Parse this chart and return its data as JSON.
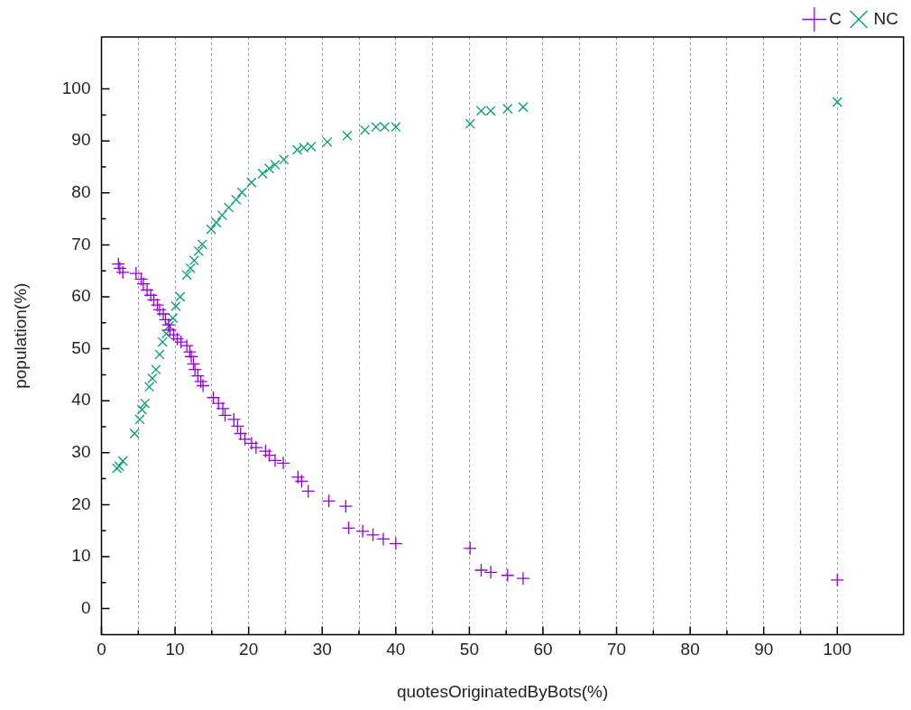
{
  "chart_data": {
    "type": "scatter",
    "xlabel": "quotesOriginatedByBots(%)",
    "ylabel": "population(%)",
    "legend": "top right",
    "grid": "x",
    "xlim": [
      0,
      109
    ],
    "ylim": [
      -5,
      110
    ],
    "xticks": [
      0,
      {
        "value": 5,
        "label": null
      },
      10,
      {
        "value": 15,
        "label": null
      },
      20,
      {
        "value": 25,
        "label": null
      },
      30,
      {
        "value": 35,
        "label": null
      },
      40,
      {
        "value": 45,
        "label": null
      },
      50,
      {
        "value": 55,
        "label": null
      },
      60,
      {
        "value": 65,
        "label": null
      },
      70,
      {
        "value": 75,
        "label": null
      },
      80,
      {
        "value": 85,
        "label": null
      },
      90,
      {
        "value": 95,
        "label": null
      },
      100
    ],
    "yticks": [
      0,
      {
        "value": 5,
        "label": null
      },
      10,
      {
        "value": 15,
        "label": null
      },
      20,
      {
        "value": 25,
        "label": null
      },
      30,
      {
        "value": 35,
        "label": null
      },
      40,
      {
        "value": 45,
        "label": null
      },
      50,
      {
        "value": 55,
        "label": null
      },
      60,
      {
        "value": 65,
        "label": null
      },
      70,
      {
        "value": 75,
        "label": null
      },
      80,
      {
        "value": 85,
        "label": null
      },
      90,
      {
        "value": 95,
        "label": null
      },
      100
    ],
    "series": [
      {
        "name": "C",
        "color": "#9400d3",
        "marker": "cross",
        "x": [
          2.3,
          2.5,
          2.9,
          4.7,
          5.4,
          5.7,
          6.2,
          6.7,
          7.1,
          7.6,
          7.9,
          8.4,
          8.7,
          9.1,
          9.3,
          9.8,
          10.3,
          10.8,
          11.6,
          12,
          12.2,
          12.5,
          12.7,
          13.1,
          13.5,
          13.8,
          15.2,
          15.9,
          16.5,
          16.8,
          18,
          18.5,
          18.9,
          19.5,
          20.4,
          21,
          22.3,
          22.8,
          23.6,
          24.7,
          26.7,
          27.2,
          28.1,
          30.9,
          33.2,
          33.6,
          35.5,
          36.9,
          38.3,
          40,
          50.1,
          51.6,
          52.9,
          55.2,
          57.3,
          100
        ],
        "values": [
          66.3,
          65.5,
          64.7,
          64.5,
          63.4,
          62.5,
          61.3,
          60.3,
          59.4,
          58.4,
          57.5,
          56.7,
          55.6,
          54.6,
          53.6,
          52.7,
          51.9,
          51.3,
          50.6,
          49.4,
          48.5,
          47.1,
          46,
          44.8,
          43.7,
          42.9,
          40.6,
          39.5,
          38.5,
          37.2,
          36.4,
          35.1,
          33.7,
          32.6,
          31.8,
          31,
          30.3,
          29.5,
          28.5,
          28,
          25.3,
          24.5,
          22.6,
          20.7,
          19.7,
          15.5,
          14.9,
          14.2,
          13.4,
          12.5,
          11.6,
          7.4,
          7,
          6.4,
          5.8,
          5.5
        ]
      },
      {
        "name": "NC",
        "color": "#009e73",
        "marker": "x",
        "x": [
          2.1,
          2.4,
          2.9,
          4.5,
          5.2,
          5.5,
          5.9,
          6.5,
          6.9,
          7.4,
          7.9,
          8.3,
          8.8,
          9.2,
          9.7,
          10.1,
          10.7,
          11.6,
          12.1,
          12.6,
          13.2,
          13.7,
          14.9,
          15.6,
          16.4,
          17.3,
          18.3,
          19.1,
          20.4,
          21.9,
          22.8,
          23.6,
          24.8,
          26.6,
          27.5,
          28.5,
          30.7,
          33.4,
          35.8,
          37.3,
          38.5,
          40,
          50.1,
          51.6,
          52.9,
          55.2,
          57.3,
          100
        ],
        "values": [
          27,
          27.4,
          28.4,
          33.7,
          36.4,
          38.3,
          39.5,
          42.7,
          44.3,
          46,
          48.9,
          51.3,
          52.9,
          54.4,
          55.9,
          58.2,
          60,
          64.2,
          65.5,
          67,
          68.8,
          70.1,
          73,
          74.3,
          75.7,
          77.2,
          78.7,
          80.1,
          82,
          83.7,
          84.7,
          85.4,
          86.4,
          88.3,
          88.7,
          88.9,
          89.8,
          91,
          92.1,
          92.7,
          92.7,
          92.7,
          93.3,
          95.8,
          95.8,
          96.2,
          96.5,
          97.5
        ]
      }
    ]
  }
}
